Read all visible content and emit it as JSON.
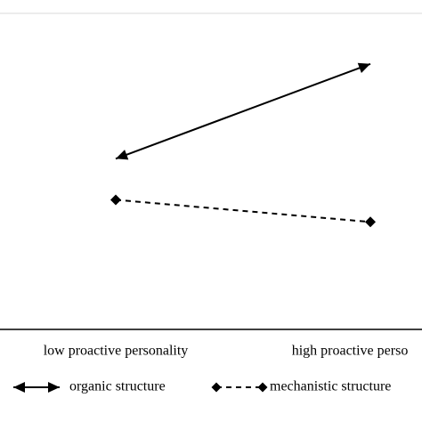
{
  "chart_data": {
    "type": "line",
    "categories": [
      "low proactive personality",
      "high proactive perso"
    ],
    "series": [
      {
        "name": "organic structure",
        "color": "#000000",
        "marker": "arrow",
        "dash": false,
        "values": [
          5.4,
          8.4
        ]
      },
      {
        "name": "mechanistic structure",
        "color": "#000000",
        "marker": "diamond",
        "dash": true,
        "values": [
          4.1,
          3.4
        ]
      }
    ],
    "ylim": [
      0,
      10
    ]
  }
}
